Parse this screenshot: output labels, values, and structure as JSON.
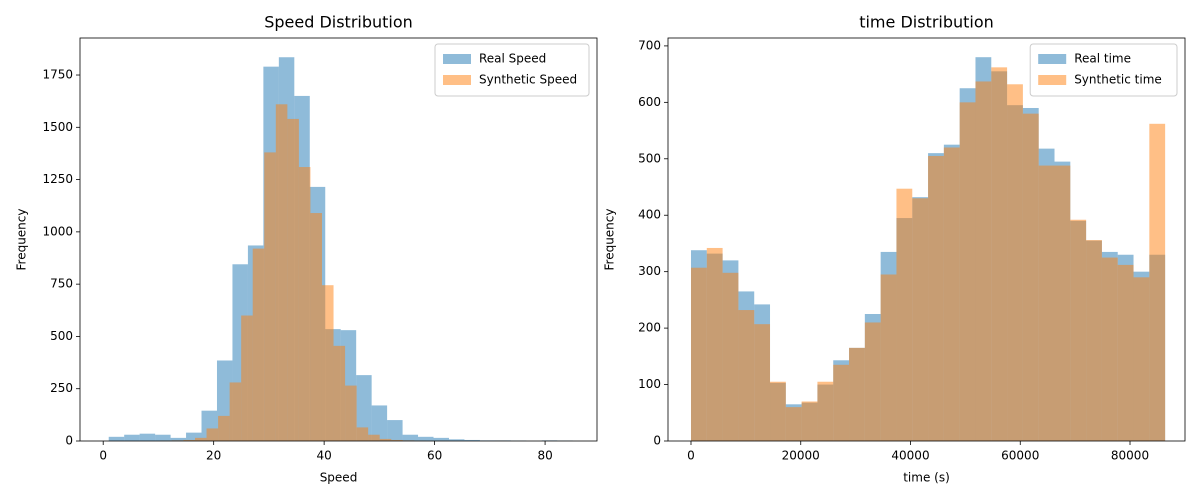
{
  "chart_data": [
    {
      "type": "histogram",
      "title": "Speed Distribution",
      "x_label": "Speed",
      "y_label": "Frequency",
      "xlim": [
        -4.2,
        89.4
      ],
      "ylim": [
        0,
        1927
      ],
      "xticks": [
        0,
        20,
        40,
        60,
        80
      ],
      "yticks": [
        0,
        250,
        500,
        750,
        1000,
        1250,
        1500,
        1750
      ],
      "legend": "upper right",
      "series": [
        {
          "name": "Real Speed",
          "color": "#1f77b4",
          "alpha": 0.5,
          "bins": [
            1,
            3.8,
            6.6,
            9.4,
            12.2,
            15,
            17.8,
            20.6,
            23.4,
            26.2,
            29,
            31.8,
            34.6,
            37.4,
            40.2,
            43,
            45.8,
            48.6,
            51.4,
            54.2,
            57,
            59.8,
            62.6,
            65.4,
            68.2,
            71,
            73.8,
            76.6,
            79.4,
            82.2,
            85
          ],
          "values": [
            20,
            30,
            35,
            30,
            15,
            40,
            145,
            385,
            845,
            935,
            1790,
            1835,
            1650,
            1215,
            535,
            530,
            315,
            170,
            100,
            30,
            20,
            15,
            8,
            5,
            3,
            3,
            2,
            0,
            3,
            2
          ]
        },
        {
          "name": "Synthetic Speed",
          "color": "#ff7f0e",
          "alpha": 0.5,
          "bins": [
            10.35,
            12.44,
            14.53,
            16.62,
            18.71,
            20.8,
            22.89,
            24.98,
            27.07,
            29.16,
            31.25,
            33.34,
            35.43,
            37.52,
            39.61,
            41.7,
            43.79,
            45.88,
            47.97,
            50.06,
            52.15,
            54.24,
            56.33,
            58.42,
            60.51,
            62.6,
            64.69,
            66.78,
            68.87,
            70.96,
            73.05
          ],
          "values": [
            2,
            3,
            5,
            15,
            60,
            120,
            280,
            600,
            920,
            1380,
            1610,
            1540,
            1310,
            1090,
            745,
            455,
            265,
            65,
            30,
            10,
            5,
            3,
            2,
            1,
            1,
            0,
            0,
            0,
            0,
            1
          ]
        }
      ]
    },
    {
      "type": "histogram",
      "title": "time Distribution",
      "x_label": "time (s)",
      "y_label": "Frequency",
      "xlim": [
        -4190,
        90020
      ],
      "ylim": [
        0,
        714
      ],
      "xticks": [
        0,
        20000,
        40000,
        60000,
        80000
      ],
      "yticks": [
        0,
        100,
        200,
        300,
        400,
        500,
        600,
        700
      ],
      "legend": "upper right",
      "series": [
        {
          "name": "Real time",
          "color": "#1f77b4",
          "alpha": 0.5,
          "bins": [
            0,
            2880,
            5760,
            8640,
            11520,
            14400,
            17280,
            20160,
            23040,
            25920,
            28800,
            31680,
            34560,
            37440,
            40320,
            43200,
            46080,
            48960,
            51840,
            54720,
            57600,
            60480,
            63360,
            66240,
            69120,
            72000,
            74880,
            77760,
            80640,
            83520,
            86400
          ],
          "values": [
            338,
            332,
            320,
            265,
            242,
            103,
            65,
            68,
            100,
            143,
            165,
            225,
            335,
            395,
            432,
            510,
            525,
            625,
            680,
            655,
            595,
            590,
            518,
            495,
            390,
            355,
            335,
            330,
            300,
            330
          ]
        },
        {
          "name": "Synthetic time",
          "color": "#ff7f0e",
          "alpha": 0.5,
          "bins": [
            0,
            2880,
            5760,
            8640,
            11520,
            14400,
            17280,
            20160,
            23040,
            25920,
            28800,
            31680,
            34560,
            37440,
            40320,
            43200,
            46080,
            48960,
            51840,
            54720,
            57600,
            60480,
            63360,
            66240,
            69120,
            72000,
            74880,
            77760,
            80640,
            83520,
            86400
          ],
          "values": [
            307,
            342,
            298,
            232,
            207,
            105,
            60,
            70,
            105,
            135,
            165,
            210,
            295,
            447,
            430,
            505,
            520,
            600,
            637,
            662,
            632,
            580,
            488,
            488,
            392,
            356,
            325,
            312,
            290,
            562
          ]
        }
      ]
    }
  ]
}
